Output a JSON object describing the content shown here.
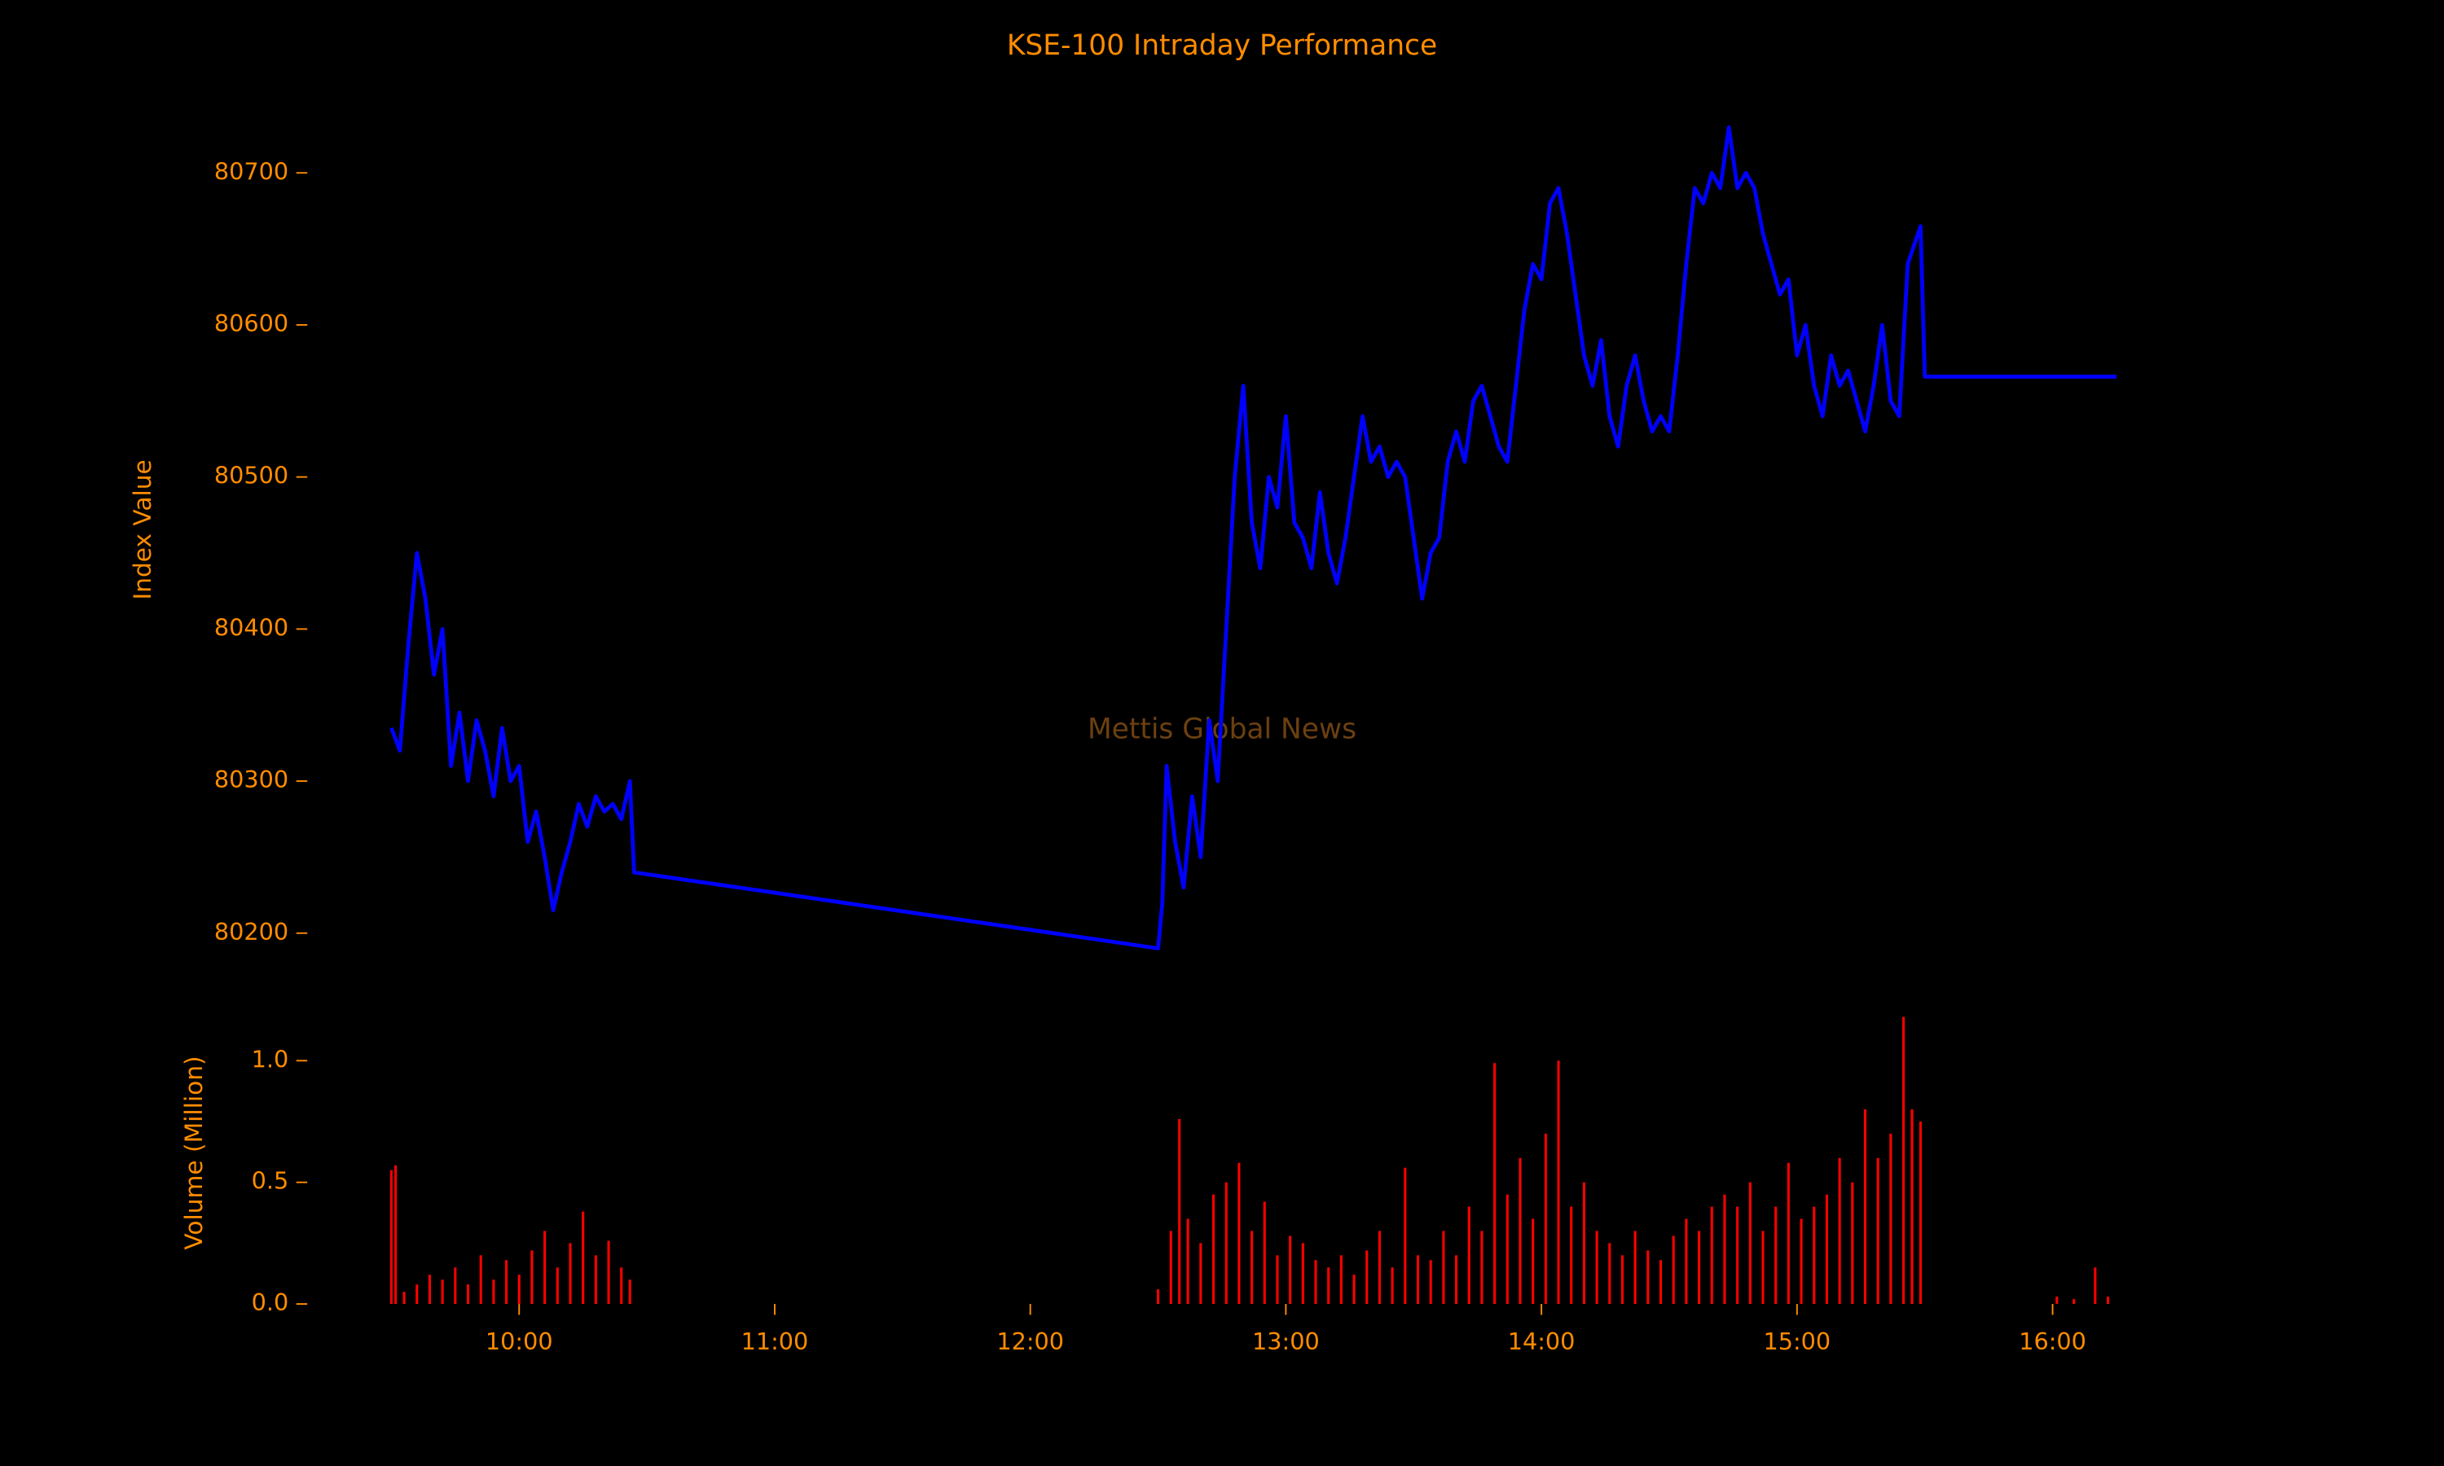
{
  "chart_data": [
    {
      "type": "line",
      "title": "KSE-100 Intraday Performance",
      "ylabel": "Index Value",
      "annotation": "Mettis Global News",
      "color": "#0000ff",
      "x": [
        "09:30",
        "09:32",
        "09:34",
        "09:36",
        "09:38",
        "09:40",
        "09:42",
        "09:44",
        "09:46",
        "09:48",
        "09:50",
        "09:52",
        "09:54",
        "09:56",
        "09:58",
        "10:00",
        "10:02",
        "10:04",
        "10:06",
        "10:08",
        "10:10",
        "10:12",
        "10:14",
        "10:16",
        "10:18",
        "10:20",
        "10:22",
        "10:24",
        "10:26",
        "10:27",
        "12:30",
        "12:31",
        "12:32",
        "12:34",
        "12:36",
        "12:38",
        "12:40",
        "12:42",
        "12:44",
        "12:46",
        "12:48",
        "12:50",
        "12:52",
        "12:54",
        "12:56",
        "12:58",
        "13:00",
        "13:02",
        "13:04",
        "13:06",
        "13:08",
        "13:10",
        "13:12",
        "13:14",
        "13:16",
        "13:18",
        "13:20",
        "13:22",
        "13:24",
        "13:26",
        "13:28",
        "13:30",
        "13:32",
        "13:34",
        "13:36",
        "13:38",
        "13:40",
        "13:42",
        "13:44",
        "13:46",
        "13:48",
        "13:50",
        "13:52",
        "13:54",
        "13:56",
        "13:58",
        "14:00",
        "14:02",
        "14:04",
        "14:06",
        "14:08",
        "14:10",
        "14:12",
        "14:14",
        "14:16",
        "14:18",
        "14:20",
        "14:22",
        "14:24",
        "14:26",
        "14:28",
        "14:30",
        "14:32",
        "14:34",
        "14:36",
        "14:38",
        "14:40",
        "14:42",
        "14:44",
        "14:46",
        "14:48",
        "14:50",
        "14:52",
        "14:54",
        "14:56",
        "14:58",
        "15:00",
        "15:02",
        "15:04",
        "15:06",
        "15:08",
        "15:10",
        "15:12",
        "15:14",
        "15:16",
        "15:18",
        "15:20",
        "15:22",
        "15:24",
        "15:26",
        "15:29",
        "15:30",
        "16:15"
      ],
      "values": [
        80335,
        80320,
        80390,
        80450,
        80420,
        80370,
        80400,
        80310,
        80345,
        80300,
        80340,
        80320,
        80290,
        80335,
        80300,
        80310,
        80260,
        80280,
        80250,
        80215,
        80240,
        80260,
        80285,
        80270,
        80290,
        80280,
        80285,
        80275,
        80300,
        80240,
        80190,
        80220,
        80310,
        80260,
        80230,
        80290,
        80250,
        80340,
        80300,
        80400,
        80500,
        80560,
        80470,
        80440,
        80500,
        80480,
        80540,
        80470,
        80460,
        80440,
        80490,
        80450,
        80430,
        80460,
        80500,
        80540,
        80510,
        80520,
        80500,
        80510,
        80500,
        80460,
        80420,
        80450,
        80460,
        80510,
        80530,
        80510,
        80550,
        80560,
        80540,
        80520,
        80510,
        80560,
        80610,
        80640,
        80630,
        80680,
        80690,
        80660,
        80620,
        80580,
        80560,
        80590,
        80540,
        80520,
        80560,
        80580,
        80550,
        80530,
        80540,
        80530,
        80580,
        80640,
        80690,
        80680,
        80700,
        80690,
        80730,
        80690,
        80700,
        80690,
        80660,
        80640,
        80620,
        80630,
        80580,
        80600,
        80560,
        80540,
        80580,
        80560,
        80570,
        80550,
        80530,
        80560,
        80600,
        80550,
        80540,
        80640,
        80665,
        80566,
        80566
      ],
      "xlim": [
        "09:10",
        "16:30"
      ],
      "ylim": [
        80180,
        80760
      ],
      "yticks": [
        80200,
        80300,
        80400,
        80500,
        80600,
        80700
      ]
    },
    {
      "type": "bar",
      "ylabel": "Volume (Million)",
      "color": "#ff0000",
      "x": [
        "09:30",
        "09:31",
        "09:33",
        "09:36",
        "09:39",
        "09:42",
        "09:45",
        "09:48",
        "09:51",
        "09:54",
        "09:57",
        "10:00",
        "10:03",
        "10:06",
        "10:09",
        "10:12",
        "10:15",
        "10:18",
        "10:21",
        "10:24",
        "10:26",
        "12:30",
        "12:33",
        "12:35",
        "12:37",
        "12:40",
        "12:43",
        "12:46",
        "12:49",
        "12:52",
        "12:55",
        "12:58",
        "13:01",
        "13:04",
        "13:07",
        "13:10",
        "13:13",
        "13:16",
        "13:19",
        "13:22",
        "13:25",
        "13:28",
        "13:31",
        "13:34",
        "13:37",
        "13:40",
        "13:43",
        "13:46",
        "13:49",
        "13:52",
        "13:55",
        "13:58",
        "14:01",
        "14:04",
        "14:07",
        "14:10",
        "14:13",
        "14:16",
        "14:19",
        "14:22",
        "14:25",
        "14:28",
        "14:31",
        "14:34",
        "14:37",
        "14:40",
        "14:43",
        "14:46",
        "14:49",
        "14:52",
        "14:55",
        "14:58",
        "15:01",
        "15:04",
        "15:07",
        "15:10",
        "15:13",
        "15:16",
        "15:19",
        "15:22",
        "15:25",
        "15:27",
        "15:29",
        "16:01",
        "16:05",
        "16:10",
        "16:13"
      ],
      "values": [
        0.55,
        0.57,
        0.05,
        0.08,
        0.12,
        0.1,
        0.15,
        0.08,
        0.2,
        0.1,
        0.18,
        0.12,
        0.22,
        0.3,
        0.15,
        0.25,
        0.38,
        0.2,
        0.26,
        0.15,
        0.1,
        0.06,
        0.3,
        0.76,
        0.35,
        0.25,
        0.45,
        0.5,
        0.58,
        0.3,
        0.42,
        0.2,
        0.28,
        0.25,
        0.18,
        0.15,
        0.2,
        0.12,
        0.22,
        0.3,
        0.15,
        0.56,
        0.2,
        0.18,
        0.3,
        0.2,
        0.4,
        0.3,
        0.99,
        0.45,
        0.6,
        0.35,
        0.7,
        1.0,
        0.4,
        0.5,
        0.3,
        0.25,
        0.2,
        0.3,
        0.22,
        0.18,
        0.28,
        0.35,
        0.3,
        0.4,
        0.45,
        0.4,
        0.5,
        0.3,
        0.4,
        0.58,
        0.35,
        0.4,
        0.45,
        0.6,
        0.5,
        0.8,
        0.6,
        0.7,
        1.18,
        0.8,
        0.75,
        0.03,
        0.02,
        0.15,
        0.03
      ],
      "xlim": [
        "09:10",
        "16:30"
      ],
      "ylim": [
        0,
        1.2
      ],
      "yticks": [
        {
          "value": 0,
          "label": "0.0"
        },
        0.5,
        {
          "value": 1,
          "label": "1.0"
        }
      ],
      "xticks": [
        "10:00",
        "11:00",
        "12:00",
        "13:00",
        "14:00",
        "15:00",
        "16:00"
      ]
    }
  ]
}
